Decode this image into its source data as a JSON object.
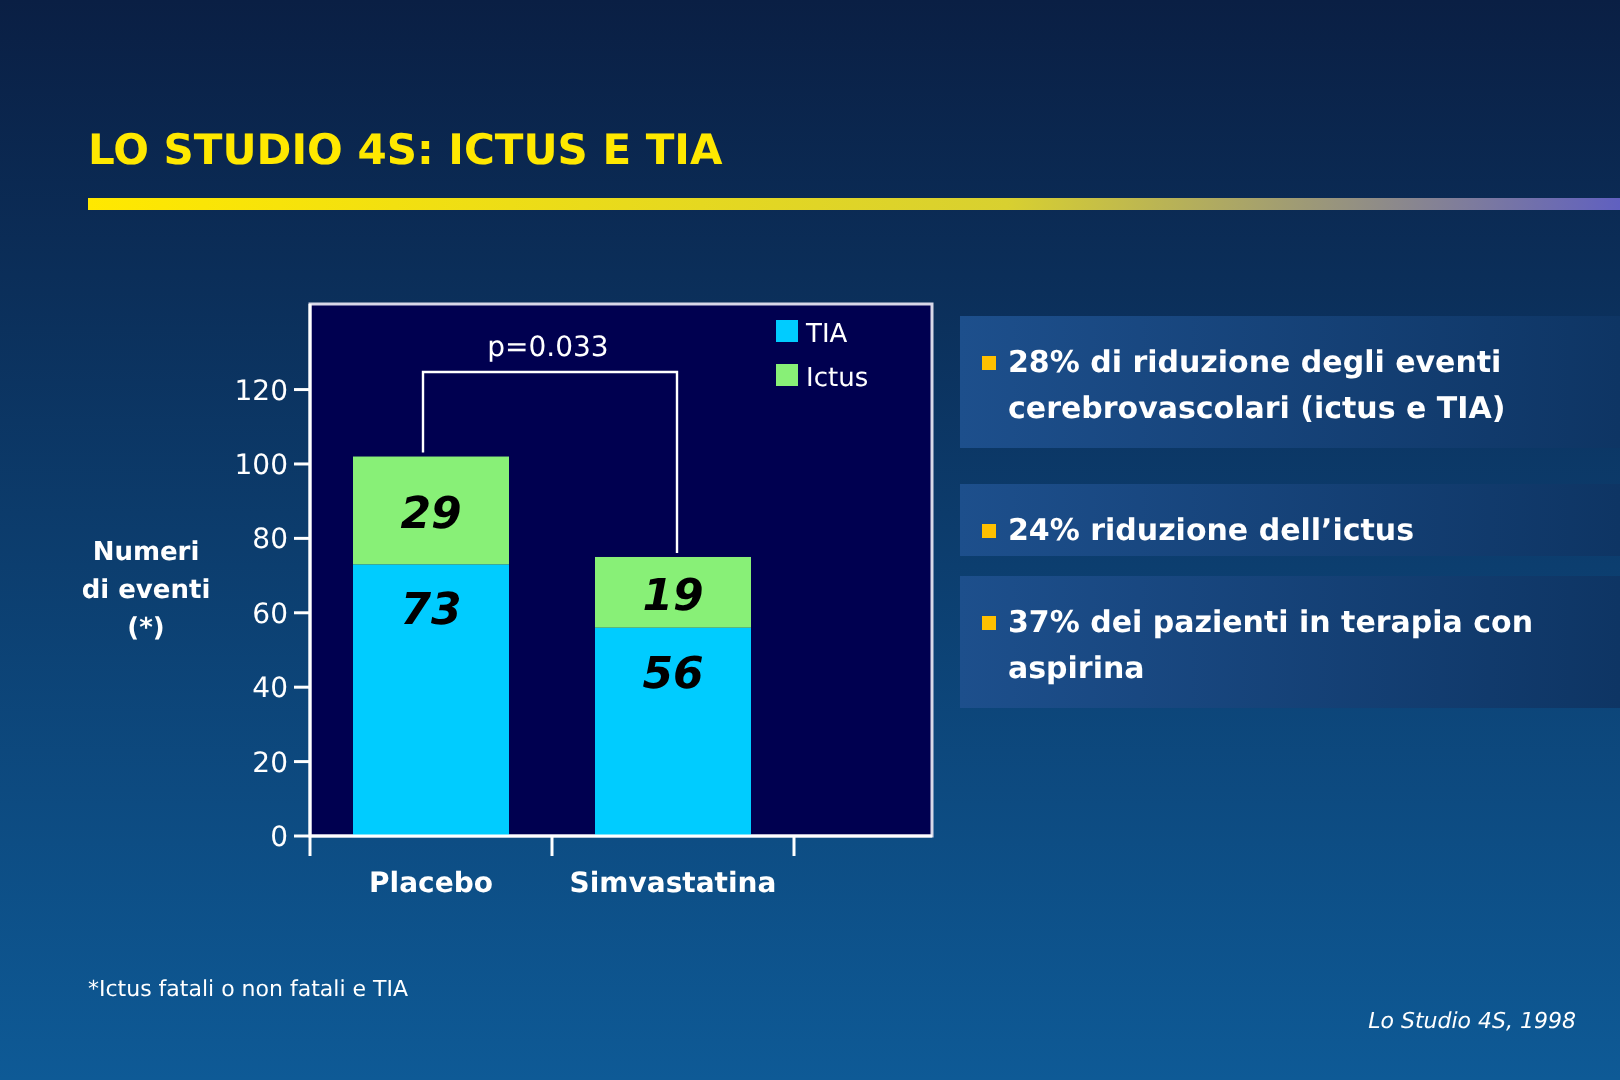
{
  "chart_data": {
    "type": "bar",
    "title": "LO STUDIO 4S: ICTUS E TIA",
    "ylabel": "Numeri\ndi eventi\n(*)",
    "categories": [
      "Placebo",
      "Simvastatina"
    ],
    "series": [
      {
        "name": "TIA",
        "color": "#00ccff",
        "values": [
          73,
          56
        ]
      },
      {
        "name": "Ictus",
        "color": "#88f077",
        "values": [
          29,
          19
        ]
      }
    ],
    "stacked": true,
    "data_labels": true,
    "legend": "top right",
    "ylim": [
      0,
      143
    ],
    "yticks": [
      0,
      20,
      40,
      60,
      80,
      100,
      120
    ],
    "annotations": [
      "p=0.033",
      "28% di riduzione degli eventi cerebrovascolari (ictus e TIA)",
      "24% riduzione dell’ictus",
      "37% dei pazienti in terapia con aspirina",
      "*Ictus fatali o non fatali e TIA",
      "Lo Studio 4S, 1998"
    ]
  }
}
